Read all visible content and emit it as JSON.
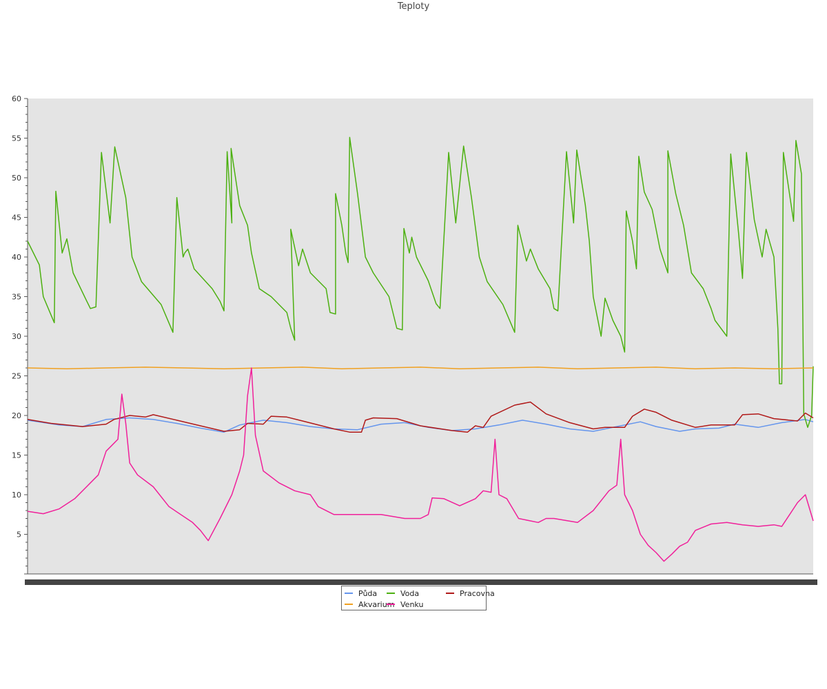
{
  "chart_data": {
    "type": "line",
    "title": "Teploty",
    "xlabel": "",
    "ylabel": "",
    "ylim": [
      0,
      60
    ],
    "yticks": [
      5,
      10,
      15,
      20,
      25,
      30,
      35,
      40,
      45,
      50,
      55,
      60
    ],
    "x_range": [
      0,
      1
    ],
    "grid": false,
    "legend_position": "bottom-center",
    "series": [
      {
        "name": "Půda",
        "color": "#6495ED",
        "points": [
          [
            0,
            19.4
          ],
          [
            0.04,
            18.8
          ],
          [
            0.07,
            18.6
          ],
          [
            0.1,
            19.5
          ],
          [
            0.13,
            19.7
          ],
          [
            0.16,
            19.5
          ],
          [
            0.19,
            19.0
          ],
          [
            0.22,
            18.4
          ],
          [
            0.25,
            17.9
          ],
          [
            0.27,
            18.8
          ],
          [
            0.3,
            19.4
          ],
          [
            0.33,
            19.1
          ],
          [
            0.36,
            18.6
          ],
          [
            0.39,
            18.3
          ],
          [
            0.42,
            18.2
          ],
          [
            0.45,
            18.9
          ],
          [
            0.48,
            19.1
          ],
          [
            0.51,
            18.5
          ],
          [
            0.54,
            18.1
          ],
          [
            0.57,
            18.3
          ],
          [
            0.6,
            18.8
          ],
          [
            0.63,
            19.4
          ],
          [
            0.66,
            18.9
          ],
          [
            0.69,
            18.3
          ],
          [
            0.72,
            18.0
          ],
          [
            0.75,
            18.6
          ],
          [
            0.78,
            19.2
          ],
          [
            0.8,
            18.6
          ],
          [
            0.83,
            18.0
          ],
          [
            0.85,
            18.3
          ],
          [
            0.88,
            18.4
          ],
          [
            0.9,
            18.9
          ],
          [
            0.93,
            18.5
          ],
          [
            0.96,
            19.1
          ],
          [
            0.99,
            19.5
          ],
          [
            1,
            19.2
          ]
        ]
      },
      {
        "name": "Voda",
        "color": "#4CB010",
        "points": [
          [
            0,
            42
          ],
          [
            0.015,
            39
          ],
          [
            0.02,
            35
          ],
          [
            0.034,
            31.7
          ],
          [
            0.036,
            48.3
          ],
          [
            0.044,
            40.5
          ],
          [
            0.05,
            42.3
          ],
          [
            0.058,
            38
          ],
          [
            0.075,
            34.5
          ],
          [
            0.08,
            33.5
          ],
          [
            0.087,
            33.7
          ],
          [
            0.094,
            53.2
          ],
          [
            0.105,
            44.3
          ],
          [
            0.111,
            53.9
          ],
          [
            0.125,
            47.5
          ],
          [
            0.133,
            40
          ],
          [
            0.145,
            36.9
          ],
          [
            0.17,
            34
          ],
          [
            0.185,
            30.5
          ],
          [
            0.19,
            47.5
          ],
          [
            0.198,
            40
          ],
          [
            0.2,
            40.5
          ],
          [
            0.204,
            41
          ],
          [
            0.212,
            38.5
          ],
          [
            0.235,
            36
          ],
          [
            0.245,
            34.4
          ],
          [
            0.25,
            33.2
          ],
          [
            0.254,
            53.3
          ],
          [
            0.26,
            44.3
          ],
          [
            0.259,
            53.7
          ],
          [
            0.27,
            46.5
          ],
          [
            0.28,
            44
          ],
          [
            0.285,
            40.5
          ],
          [
            0.295,
            36
          ],
          [
            0.31,
            35
          ],
          [
            0.33,
            33
          ],
          [
            0.335,
            31
          ],
          [
            0.34,
            29.5
          ],
          [
            0.335,
            43.5
          ],
          [
            0.345,
            38.9
          ],
          [
            0.35,
            41
          ],
          [
            0.36,
            38
          ],
          [
            0.38,
            36
          ],
          [
            0.385,
            33
          ],
          [
            0.392,
            32.8
          ],
          [
            0.392,
            48
          ],
          [
            0.4,
            44
          ],
          [
            0.405,
            40.5
          ],
          [
            0.408,
            39.3
          ],
          [
            0.41,
            55.1
          ],
          [
            0.42,
            48
          ],
          [
            0.43,
            40
          ],
          [
            0.44,
            38
          ],
          [
            0.46,
            35
          ],
          [
            0.47,
            31
          ],
          [
            0.477,
            30.8
          ],
          [
            0.479,
            43.6
          ],
          [
            0.486,
            40.5
          ],
          [
            0.489,
            42.5
          ],
          [
            0.495,
            40
          ],
          [
            0.51,
            37
          ],
          [
            0.52,
            34.1
          ],
          [
            0.525,
            33.5
          ],
          [
            0.536,
            53.2
          ],
          [
            0.545,
            44.3
          ],
          [
            0.555,
            54
          ],
          [
            0.565,
            47.5
          ],
          [
            0.575,
            40
          ],
          [
            0.585,
            36.9
          ],
          [
            0.605,
            34
          ],
          [
            0.62,
            30.5
          ],
          [
            0.624,
            44
          ],
          [
            0.635,
            39.5
          ],
          [
            0.64,
            41
          ],
          [
            0.65,
            38.5
          ],
          [
            0.665,
            36
          ],
          [
            0.67,
            33.5
          ],
          [
            0.675,
            33.2
          ],
          [
            0.686,
            53.3
          ],
          [
            0.695,
            44.3
          ],
          [
            0.699,
            53.5
          ],
          [
            0.71,
            46.5
          ],
          [
            0.715,
            42
          ],
          [
            0.72,
            35
          ],
          [
            0.725,
            32.5
          ],
          [
            0.73,
            30
          ],
          [
            0.735,
            34.8
          ],
          [
            0.745,
            32
          ],
          [
            0.755,
            30
          ],
          [
            0.76,
            28
          ],
          [
            0.762,
            45.8
          ],
          [
            0.77,
            42
          ],
          [
            0.775,
            38.5
          ],
          [
            0.778,
            52.7
          ],
          [
            0.785,
            48.2
          ],
          [
            0.795,
            46
          ],
          [
            0.805,
            41
          ],
          [
            0.815,
            38
          ],
          [
            0.815,
            53.4
          ],
          [
            0.825,
            48
          ],
          [
            0.835,
            44
          ],
          [
            0.845,
            38
          ],
          [
            0.86,
            36
          ],
          [
            0.87,
            33.5
          ],
          [
            0.875,
            32
          ],
          [
            0.89,
            30
          ],
          [
            0.895,
            53
          ],
          [
            0.905,
            43
          ],
          [
            0.91,
            37.3
          ],
          [
            0.915,
            53.2
          ],
          [
            0.925,
            44.7
          ],
          [
            0.935,
            40
          ],
          [
            0.94,
            43.5
          ],
          [
            0.95,
            40
          ],
          [
            0.955,
            31
          ],
          [
            0.957,
            24
          ],
          [
            0.96,
            24
          ],
          [
            0.962,
            53.2
          ],
          [
            0.975,
            44.5
          ],
          [
            0.978,
            54.7
          ],
          [
            0.985,
            50.5
          ],
          [
            0.988,
            20.2
          ],
          [
            0.993,
            18.5
          ],
          [
            0.998,
            20
          ],
          [
            1,
            26.2
          ]
        ]
      },
      {
        "name": "Pracovna",
        "color": "#B01818",
        "points": [
          [
            0,
            19.5
          ],
          [
            0.03,
            19.0
          ],
          [
            0.07,
            18.6
          ],
          [
            0.1,
            18.9
          ],
          [
            0.11,
            19.5
          ],
          [
            0.13,
            20.0
          ],
          [
            0.15,
            19.8
          ],
          [
            0.16,
            20.1
          ],
          [
            0.19,
            19.4
          ],
          [
            0.22,
            18.7
          ],
          [
            0.25,
            18.0
          ],
          [
            0.27,
            18.2
          ],
          [
            0.28,
            19.0
          ],
          [
            0.3,
            18.9
          ],
          [
            0.31,
            19.9
          ],
          [
            0.33,
            19.8
          ],
          [
            0.35,
            19.3
          ],
          [
            0.39,
            18.3
          ],
          [
            0.41,
            17.9
          ],
          [
            0.425,
            17.9
          ],
          [
            0.43,
            19.4
          ],
          [
            0.44,
            19.7
          ],
          [
            0.47,
            19.6
          ],
          [
            0.5,
            18.7
          ],
          [
            0.54,
            18.1
          ],
          [
            0.56,
            17.9
          ],
          [
            0.57,
            18.7
          ],
          [
            0.58,
            18.5
          ],
          [
            0.59,
            19.9
          ],
          [
            0.62,
            21.3
          ],
          [
            0.64,
            21.7
          ],
          [
            0.66,
            20.2
          ],
          [
            0.69,
            19.1
          ],
          [
            0.72,
            18.3
          ],
          [
            0.735,
            18.5
          ],
          [
            0.76,
            18.5
          ],
          [
            0.77,
            19.9
          ],
          [
            0.785,
            20.8
          ],
          [
            0.8,
            20.4
          ],
          [
            0.82,
            19.4
          ],
          [
            0.85,
            18.5
          ],
          [
            0.87,
            18.8
          ],
          [
            0.9,
            18.8
          ],
          [
            0.91,
            20.1
          ],
          [
            0.93,
            20.2
          ],
          [
            0.95,
            19.6
          ],
          [
            0.98,
            19.3
          ],
          [
            0.99,
            20.3
          ],
          [
            1,
            19.7
          ]
        ]
      },
      {
        "name": "Akvarium",
        "color": "#F0A020",
        "points": [
          [
            0,
            26.0
          ],
          [
            0.05,
            25.9
          ],
          [
            0.1,
            26.0
          ],
          [
            0.15,
            26.1
          ],
          [
            0.2,
            26.0
          ],
          [
            0.25,
            25.9
          ],
          [
            0.3,
            26.0
          ],
          [
            0.35,
            26.1
          ],
          [
            0.4,
            25.9
          ],
          [
            0.45,
            26.0
          ],
          [
            0.5,
            26.1
          ],
          [
            0.55,
            25.9
          ],
          [
            0.6,
            26.0
          ],
          [
            0.65,
            26.1
          ],
          [
            0.7,
            25.9
          ],
          [
            0.75,
            26.0
          ],
          [
            0.8,
            26.1
          ],
          [
            0.85,
            25.9
          ],
          [
            0.9,
            26.0
          ],
          [
            0.95,
            25.9
          ],
          [
            1,
            26.0
          ]
        ]
      },
      {
        "name": "Venku",
        "color": "#F0209A",
        "points": [
          [
            0,
            7.9
          ],
          [
            0.02,
            7.6
          ],
          [
            0.04,
            8.2
          ],
          [
            0.06,
            9.5
          ],
          [
            0.08,
            11.5
          ],
          [
            0.09,
            12.5
          ],
          [
            0.1,
            15.5
          ],
          [
            0.11,
            16.5
          ],
          [
            0.115,
            17
          ],
          [
            0.12,
            22.7
          ],
          [
            0.125,
            19
          ],
          [
            0.13,
            14
          ],
          [
            0.14,
            12.5
          ],
          [
            0.16,
            11
          ],
          [
            0.18,
            8.5
          ],
          [
            0.21,
            6.5
          ],
          [
            0.22,
            5.5
          ],
          [
            0.23,
            4.2
          ],
          [
            0.245,
            7
          ],
          [
            0.26,
            10
          ],
          [
            0.27,
            13
          ],
          [
            0.275,
            15
          ],
          [
            0.28,
            22.5
          ],
          [
            0.285,
            26
          ],
          [
            0.29,
            17.5
          ],
          [
            0.3,
            13
          ],
          [
            0.32,
            11.5
          ],
          [
            0.34,
            10.5
          ],
          [
            0.36,
            10
          ],
          [
            0.37,
            8.5
          ],
          [
            0.39,
            7.5
          ],
          [
            0.42,
            7.5
          ],
          [
            0.45,
            7.5
          ],
          [
            0.48,
            7
          ],
          [
            0.5,
            7
          ],
          [
            0.51,
            7.5
          ],
          [
            0.515,
            9.6
          ],
          [
            0.53,
            9.5
          ],
          [
            0.55,
            8.6
          ],
          [
            0.57,
            9.5
          ],
          [
            0.58,
            10.5
          ],
          [
            0.59,
            10.3
          ],
          [
            0.595,
            17
          ],
          [
            0.6,
            10
          ],
          [
            0.61,
            9.5
          ],
          [
            0.625,
            7
          ],
          [
            0.65,
            6.5
          ],
          [
            0.66,
            7
          ],
          [
            0.67,
            7
          ],
          [
            0.7,
            6.5
          ],
          [
            0.72,
            8
          ],
          [
            0.74,
            10.5
          ],
          [
            0.75,
            11.2
          ],
          [
            0.755,
            17
          ],
          [
            0.76,
            10
          ],
          [
            0.77,
            8
          ],
          [
            0.78,
            5
          ],
          [
            0.79,
            3.6
          ],
          [
            0.8,
            2.7
          ],
          [
            0.81,
            1.6
          ],
          [
            0.82,
            2.5
          ],
          [
            0.83,
            3.5
          ],
          [
            0.84,
            4
          ],
          [
            0.85,
            5.5
          ],
          [
            0.87,
            6.3
          ],
          [
            0.89,
            6.5
          ],
          [
            0.91,
            6.2
          ],
          [
            0.93,
            6
          ],
          [
            0.95,
            6.2
          ],
          [
            0.96,
            6
          ],
          [
            0.97,
            7.5
          ],
          [
            0.98,
            9
          ],
          [
            0.99,
            10
          ],
          [
            1,
            6.7
          ]
        ]
      }
    ]
  }
}
